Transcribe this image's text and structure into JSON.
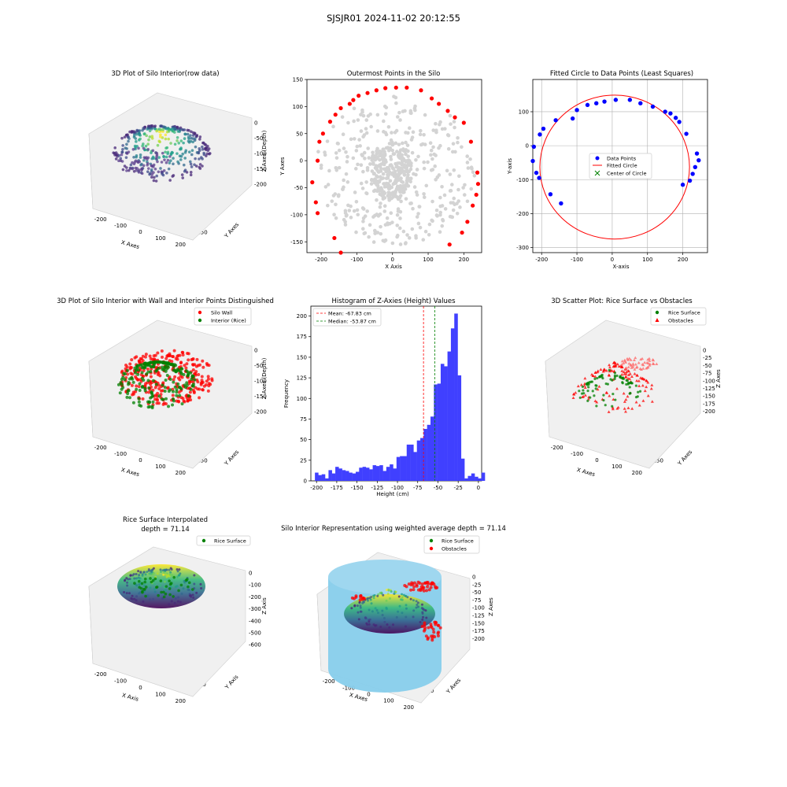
{
  "figure": {
    "suptitle": "SJSJR01 2024-11-02 20:12:55"
  },
  "plots": {
    "p1": {
      "title": "3D Plot of Silo Interior(row data)",
      "xlabel": "X Axes",
      "ylabel": "Y Axes",
      "zlabel": "Z Axes (Depth)",
      "xticks": [
        "-200",
        "-100",
        "0",
        "100",
        "200"
      ],
      "yticks": [
        "150",
        "100",
        "50",
        "0",
        "-50",
        "-100",
        "-150"
      ],
      "zticks": [
        "0",
        "-50",
        "-100",
        "-150",
        "-200"
      ]
    },
    "p2": {
      "title": "Outermost Points in the Silo",
      "xlabel": "X Axis",
      "ylabel": "Y Axes"
    },
    "p3": {
      "title": "Fitted Circle to Data Points (Least Squares)",
      "xlabel": "X-axis",
      "ylabel": "Y-axis",
      "legend": [
        "Data Points",
        "Fitted Circle",
        "Center of Circle"
      ]
    },
    "p4": {
      "title": "3D Plot of Silo Interior with Wall and Interior Points Distinguished",
      "xlabel": "X Axes",
      "ylabel": "Y Axes",
      "zlabel": "Z Axes (Depth)",
      "xticks": [
        "-200",
        "-100",
        "0",
        "100",
        "200"
      ],
      "yticks": [
        "150",
        "100",
        "50",
        "0",
        "-50",
        "-100",
        "-150"
      ],
      "zticks": [
        "0",
        "-50",
        "-100",
        "-150",
        "-200"
      ],
      "legend": [
        "Silo Wall",
        "Interior (Rice)"
      ]
    },
    "p5": {
      "title": "Histogram of Z-Axies (Height) Values",
      "xlabel": "Height (cm)",
      "ylabel": "Frequency",
      "legend": [
        "Mean: -67.83 cm",
        "Median: -53.87 cm"
      ]
    },
    "p6": {
      "title": "3D Scatter Plot: Rice Surface vs Obstacles",
      "xlabel": "X Axes",
      "ylabel": "Y Axes",
      "zlabel": "Z Axes",
      "xticks": [
        "-200",
        "-100",
        "0",
        "100",
        "200"
      ],
      "yticks": [
        "150",
        "100",
        "50",
        "0",
        "-50",
        "-100",
        "-150"
      ],
      "zticks": [
        "0",
        "-25",
        "-50",
        "-75",
        "-100",
        "-125",
        "-150",
        "-175",
        "-200"
      ],
      "legend": [
        "Rice Surface",
        "Obstacles"
      ]
    },
    "p7": {
      "title": "Rice Surface Interpolated\ndepth = 71.14",
      "xlabel": "X Axis",
      "ylabel": "Y Axis",
      "zlabel": "Z Axis",
      "xticks": [
        "-200",
        "-100",
        "0",
        "100",
        "200"
      ],
      "yticks": [
        "100",
        "0",
        "-100",
        "-200",
        "-300"
      ],
      "zticks": [
        "0",
        "-100",
        "-200",
        "-300",
        "-400",
        "-500",
        "-600"
      ],
      "legend": [
        "Rice Surface"
      ]
    },
    "p8": {
      "title": "Silo Interior Representation using weighted average depth = 71.14",
      "xlabel": "X Axes",
      "ylabel": "Y Axes",
      "zlabel": "Z Axes",
      "xticks": [
        "-200",
        "-100",
        "0",
        "100",
        "200"
      ],
      "yticks": [
        "100",
        "0",
        "-100",
        "-200",
        "-300"
      ],
      "zticks": [
        "0",
        "-25",
        "-50",
        "-75",
        "-100",
        "-125",
        "-150",
        "-175",
        "-200"
      ],
      "legend": [
        "Rice Surface",
        "Obstacles"
      ]
    }
  },
  "colors": {
    "red": "#ff0000",
    "green": "#008000",
    "blue": "#0000ff",
    "gray": "#d3d3d3",
    "hist": "#4040ff",
    "silo": "#87ceeb"
  },
  "chart_data": [
    {
      "type": "scatter",
      "title": "Outermost Points in the Silo",
      "xlabel": "X Axis",
      "ylabel": "Y Axes",
      "xlim": [
        -240,
        250
      ],
      "ylim": [
        -170,
        150
      ],
      "xticks": [
        -200,
        -100,
        0,
        100,
        200
      ],
      "yticks": [
        -150,
        -100,
        -50,
        0,
        50,
        100,
        150
      ],
      "grid": false,
      "series": [
        {
          "color": "#ff0000",
          "role": "outermost",
          "x": [
            -145,
            -163,
            -210,
            -215,
            -225,
            -210,
            -205,
            -195,
            -175,
            -160,
            -145,
            -120,
            -110,
            -95,
            -70,
            -45,
            -20,
            10,
            40,
            80,
            110,
            130,
            155,
            175,
            200,
            220,
            238,
            240,
            235,
            225,
            210,
            195,
            160
          ],
          "y": [
            -170,
            -143,
            -97,
            -77,
            -40,
            0,
            35,
            50,
            72,
            85,
            97,
            105,
            112,
            120,
            125,
            130,
            134,
            135,
            135,
            130,
            115,
            105,
            92,
            80,
            70,
            35,
            -22,
            -43,
            -63,
            -83,
            -113,
            -133,
            -155
          ]
        }
      ]
    },
    {
      "type": "scatter",
      "title": "Fitted Circle to Data Points (Least Squares)",
      "xlabel": "X-axis",
      "ylabel": "Y-axis",
      "xlim": [
        -225,
        270
      ],
      "ylim": [
        -315,
        195
      ],
      "xticks": [
        -200,
        -100,
        0,
        100,
        200
      ],
      "yticks": [
        -300,
        -200,
        -100,
        0,
        100
      ],
      "grid": true,
      "legend": "center",
      "series": [
        {
          "name": "Data Points",
          "color": "#0000ff",
          "x": [
            -225,
            -222,
            -215,
            -207,
            -205,
            -195,
            -175,
            -160,
            -145,
            -112,
            -100,
            -70,
            -45,
            -22,
            10,
            50,
            80,
            115,
            150,
            165,
            180,
            190,
            200,
            210,
            220,
            228,
            235,
            240,
            245
          ],
          "y": [
            -45,
            -3,
            -80,
            -95,
            33,
            50,
            -143,
            75,
            -170,
            80,
            105,
            120,
            125,
            130,
            135,
            135,
            125,
            115,
            100,
            95,
            82,
            70,
            -115,
            35,
            -103,
            -83,
            -63,
            -23,
            -43
          ]
        },
        {
          "name": "Fitted Circle",
          "color": "#ff0000",
          "center": [
            7,
            -63
          ],
          "radius": 212
        },
        {
          "name": "Center of Circle",
          "color": "#008000",
          "x": [
            7
          ],
          "y": [
            -63
          ]
        }
      ]
    },
    {
      "type": "bar",
      "title": "Histogram of Z-Axies (Height) Values",
      "xlabel": "Height (cm)",
      "ylabel": "Frequency",
      "xlim": [
        -207,
        4
      ],
      "ylim": [
        0,
        212
      ],
      "xticks": [
        -200,
        -175,
        -150,
        -125,
        -100,
        -75,
        -50,
        -25,
        0
      ],
      "yticks": [
        0,
        25,
        50,
        75,
        100,
        125,
        150,
        175,
        200
      ],
      "bin_start": -202,
      "bin_width": 4.2,
      "values": [
        10,
        7,
        8,
        3,
        13,
        9,
        17,
        15,
        13,
        12,
        10,
        9,
        11,
        16,
        17,
        16,
        14,
        19,
        18,
        19,
        12,
        17,
        20,
        15,
        29,
        30,
        30,
        44,
        44,
        35,
        49,
        52,
        63,
        68,
        78,
        117,
        118,
        142,
        139,
        157,
        185,
        203,
        128,
        27,
        3,
        6,
        9,
        5,
        3,
        10
      ],
      "mean": -67.83,
      "median": -53.87,
      "series": [
        {
          "name": "Mean: -67.83 cm",
          "color": "#ff0000"
        },
        {
          "name": "Median: -53.87 cm",
          "color": "#008000"
        }
      ]
    }
  ]
}
